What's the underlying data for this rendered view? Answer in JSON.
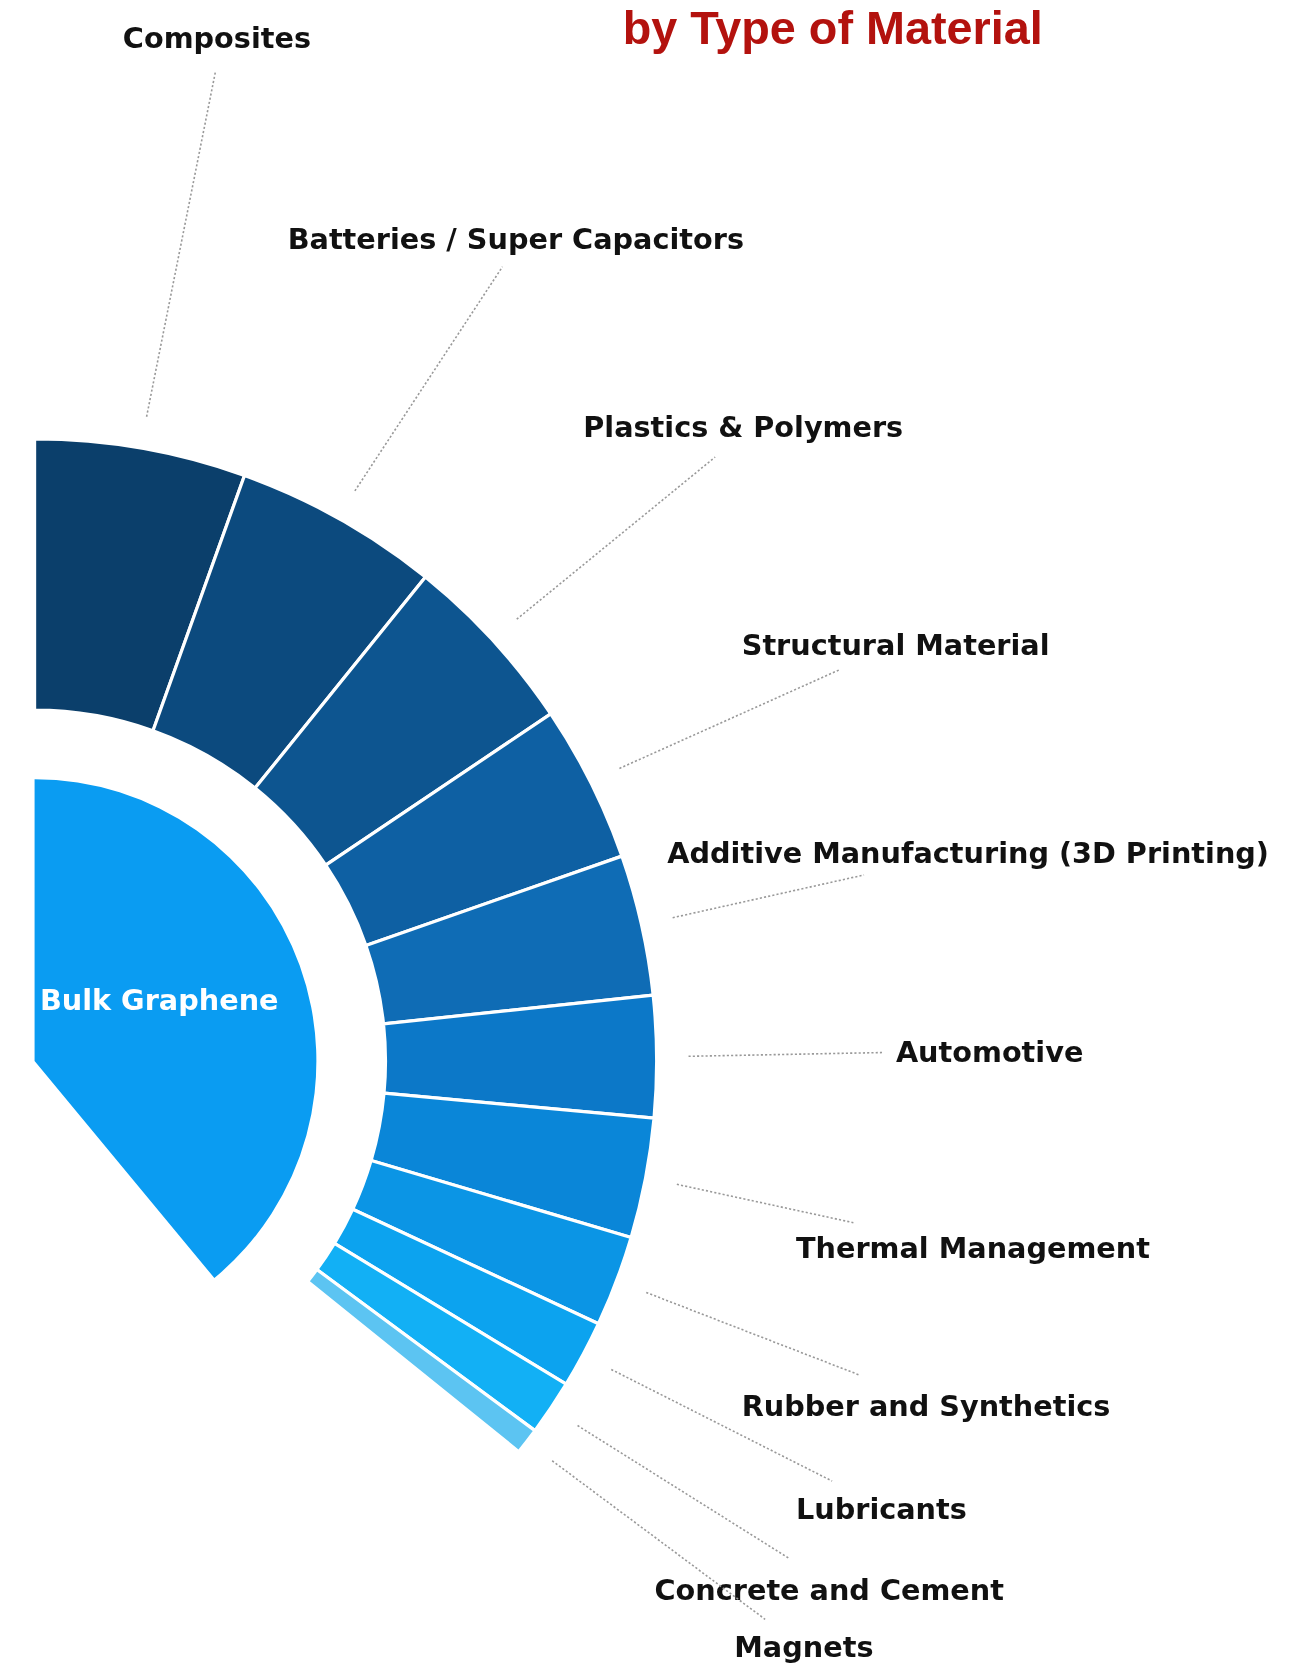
{
  "chart_data": {
    "type": "donut",
    "title": "by Type of Material",
    "annotations": [
      "Bulk Graphene"
    ],
    "categories": [
      "Composites",
      "Batteries / Super Capacitors",
      "Plastics & Polymers",
      "Structural Material",
      "Additive Manufacturing (3D Printing)",
      "Automotive",
      "Thermal Management",
      "Rubber and Synthetics",
      "Lubricants",
      "Concrete and Cement",
      "Magnets"
    ],
    "values": [
      15.3,
      14.9,
      13.3,
      11.4,
      10.2,
      8.8,
      8.7,
      6.6,
      4.9,
      4.0,
      1.9
    ],
    "colors": [
      "#0b3f6b",
      "#0c4a7e",
      "#0d5590",
      "#0e60a3",
      "#0f6cb5",
      "#0c78c8",
      "#0a86d8",
      "#0b95e5",
      "#0ca3ef",
      "#12b0f5",
      "#5cc4f2"
    ]
  }
}
